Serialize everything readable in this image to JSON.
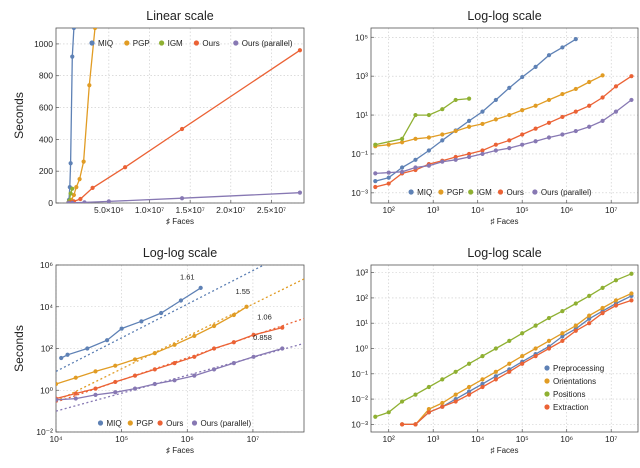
{
  "colors": {
    "MIQ": "#5e81b5",
    "PGP": "#e19c24",
    "IGM": "#8fb032",
    "Ours": "#eb6235",
    "Ours (parallel)": "#8778b3",
    "Preprocessing": "#5e81b5",
    "Orientations": "#e19c24",
    "Positions": "#8fb032",
    "Extraction": "#eb6235"
  },
  "chart_data": [
    {
      "type": "line",
      "title": "Linear scale",
      "xlabel": "♯ Faces",
      "ylabel": "Seconds",
      "xlim": [
        -1500000,
        29000000
      ],
      "ylim": [
        0,
        1100
      ],
      "grid": true,
      "legend": "top",
      "xticks": [
        5000000,
        10000000,
        15000000,
        20000000,
        25000000
      ],
      "xtick_labels": [
        "5.0×10⁶",
        "1.0×10⁷",
        "1.5×10⁷",
        "2.0×10⁷",
        "2.5×10⁷"
      ],
      "yticks": [
        0,
        200,
        400,
        600,
        800,
        1000
      ],
      "legend_order": [
        "MIQ",
        "PGP",
        "IGM",
        "Ours",
        "Ours (parallel)"
      ],
      "series": [
        {
          "name": "MIQ",
          "x": [
            10000,
            50000,
            100000,
            200000,
            300000,
            500000,
            700000
          ],
          "y": [
            1,
            5,
            20,
            100,
            250,
            920,
            1100
          ]
        },
        {
          "name": "PGP",
          "x": [
            50000,
            150000,
            400000,
            700000,
            1000000,
            1400000,
            1900000,
            2600000,
            3300000
          ],
          "y": [
            2,
            8,
            20,
            50,
            100,
            150,
            260,
            740,
            1100
          ]
        },
        {
          "name": "IGM",
          "x": [
            50000,
            150000,
            300000,
            500000
          ],
          "y": [
            3,
            15,
            60,
            90
          ]
        },
        {
          "name": "Ours",
          "x": [
            50000,
            300000,
            700000,
            1500000,
            3000000,
            7000000,
            14000000,
            28500000
          ],
          "y": [
            1,
            5,
            10,
            25,
            95,
            225,
            465,
            960
          ]
        },
        {
          "name": "Ours (parallel)",
          "x": [
            50000,
            500000,
            2000000,
            5000000,
            14000000,
            28500000
          ],
          "y": [
            0.3,
            1,
            4,
            10,
            30,
            65
          ]
        }
      ]
    },
    {
      "type": "line",
      "title": "Log-log scale",
      "xlabel": "♯ Faces",
      "ylabel": "",
      "xscale": "log",
      "yscale": "log",
      "xlim": [
        40,
        40000000
      ],
      "ylim": [
        0.0003,
        300000
      ],
      "grid": true,
      "legend": "bottom",
      "xticks": [
        100,
        1000,
        10000,
        100000,
        1000000,
        10000000
      ],
      "xtick_labels": [
        "10²",
        "10³",
        "10⁴",
        "10⁵",
        "10⁶",
        "10⁷"
      ],
      "yticks": [
        0.001,
        0.1,
        10,
        1000,
        100000
      ],
      "ytick_labels": [
        "10⁻³",
        "10⁻¹",
        "10¹",
        "10³",
        "10⁵"
      ],
      "legend_order": [
        "MIQ",
        "PGP",
        "IGM",
        "Ours",
        "Ours (parallel)"
      ],
      "series": [
        {
          "name": "MIQ",
          "x": [
            50,
            100,
            200,
            400,
            800,
            1600,
            3200,
            6400,
            12800,
            25600,
            51200,
            100000,
            200000,
            400000,
            800000,
            1600000
          ],
          "y": [
            0.004,
            0.006,
            0.02,
            0.05,
            0.15,
            0.5,
            1.6,
            5,
            15,
            60,
            250,
            900,
            3000,
            12000,
            30000,
            80000
          ]
        },
        {
          "name": "PGP",
          "x": [
            50,
            100,
            200,
            400,
            800,
            1600,
            3200,
            6400,
            12800,
            25600,
            51200,
            100000,
            200000,
            400000,
            800000,
            1600000,
            3200000,
            6400000
          ],
          "y": [
            0.25,
            0.3,
            0.4,
            0.6,
            0.7,
            1,
            1.5,
            2.5,
            3.5,
            6,
            10,
            18,
            30,
            60,
            120,
            220,
            500,
            1100
          ]
        },
        {
          "name": "IGM",
          "x": [
            50,
            200,
            400,
            800,
            1600,
            3200,
            6400
          ],
          "y": [
            0.3,
            0.6,
            10,
            10,
            20,
            60,
            70
          ]
        },
        {
          "name": "Ours",
          "x": [
            50,
            100,
            200,
            400,
            800,
            1600,
            3200,
            6400,
            12800,
            25600,
            51200,
            100000,
            200000,
            400000,
            800000,
            1600000,
            3200000,
            6400000,
            12800000,
            28500000
          ],
          "y": [
            0.002,
            0.003,
            0.01,
            0.015,
            0.03,
            0.045,
            0.07,
            0.1,
            0.15,
            0.3,
            0.5,
            1,
            2,
            4,
            8,
            15,
            30,
            80,
            300,
            1000
          ]
        },
        {
          "name": "Ours (parallel)",
          "x": [
            50,
            100,
            200,
            400,
            800,
            1600,
            3200,
            6400,
            12800,
            25600,
            51200,
            100000,
            200000,
            400000,
            800000,
            1600000,
            3200000,
            6400000,
            12800000,
            28500000
          ],
          "y": [
            0.01,
            0.011,
            0.012,
            0.02,
            0.025,
            0.04,
            0.05,
            0.07,
            0.1,
            0.15,
            0.2,
            0.3,
            0.45,
            0.7,
            1,
            1.5,
            2.5,
            5,
            15,
            60
          ]
        }
      ]
    },
    {
      "type": "line",
      "title": "Log-log scale",
      "xlabel": "♯ Faces",
      "ylabel": "Seconds",
      "xscale": "log",
      "yscale": "log",
      "xlim": [
        10000,
        60000000
      ],
      "ylim": [
        0.01,
        1000000
      ],
      "grid": true,
      "legend": "bottom",
      "xticks": [
        10000,
        100000,
        1000000,
        10000000
      ],
      "xtick_labels": [
        "10⁴",
        "10⁵",
        "10⁶",
        "10⁷"
      ],
      "yticks": [
        0.01,
        1,
        100,
        10000,
        1000000
      ],
      "ytick_labels": [
        "10⁻²",
        "10⁰",
        "10²",
        "10⁴",
        "10⁶"
      ],
      "legend_order": [
        "MIQ",
        "PGP",
        "Ours",
        "Ours (parallel)"
      ],
      "series": [
        {
          "name": "MIQ",
          "x": [
            12000,
            15000,
            30000,
            60000,
            100000,
            200000,
            400000,
            800000,
            1600000
          ],
          "y": [
            35,
            50,
            100,
            250,
            900,
            2000,
            5000,
            20000,
            80000
          ],
          "slope": 1.61,
          "fit_y_at_1e4": 8
        },
        {
          "name": "PGP",
          "x": [
            10000,
            20000,
            40000,
            80000,
            160000,
            320000,
            640000,
            1280000,
            2560000,
            5120000,
            8000000
          ],
          "y": [
            2,
            4,
            8,
            15,
            30,
            60,
            150,
            400,
            1200,
            4000,
            10000
          ],
          "slope": 1.55,
          "fit_y_at_1e4": 0.3
        },
        {
          "name": "Ours",
          "x": [
            10000,
            20000,
            40000,
            80000,
            160000,
            320000,
            640000,
            1280000,
            2560000,
            5120000,
            10240000,
            28000000
          ],
          "y": [
            0.4,
            0.7,
            1.2,
            2.5,
            5,
            10,
            20,
            40,
            100,
            200,
            450,
            1000
          ],
          "slope": 1.06,
          "fit_y_at_1e4": 0.27
        },
        {
          "name": "Ours (parallel)",
          "x": [
            10000,
            20000,
            40000,
            80000,
            160000,
            320000,
            640000,
            1280000,
            2560000,
            5120000,
            10240000,
            28000000
          ],
          "y": [
            0.35,
            0.4,
            0.6,
            0.8,
            1.2,
            2,
            3,
            5,
            10,
            20,
            40,
            100
          ],
          "slope": 0.858,
          "fit_y_at_1e4": 0.1
        }
      ],
      "annotations": [
        "1.61",
        "1.55",
        "1.06",
        "0.858"
      ]
    },
    {
      "type": "line",
      "title": "Log-log scale",
      "xlabel": "♯ Faces",
      "ylabel": "",
      "xscale": "log",
      "yscale": "log",
      "xlim": [
        40,
        40000000
      ],
      "ylim": [
        0.0005,
        2000
      ],
      "grid": true,
      "legend": "bottom-right",
      "xticks": [
        100,
        1000,
        10000,
        100000,
        1000000,
        10000000
      ],
      "xtick_labels": [
        "10²",
        "10³",
        "10⁴",
        "10⁵",
        "10⁶",
        "10⁷"
      ],
      "yticks": [
        0.001,
        0.01,
        0.1,
        1,
        10,
        100,
        1000
      ],
      "ytick_labels": [
        "10⁻³",
        "10⁻²",
        "10⁻¹",
        "10⁰",
        "10¹",
        "10²",
        "10³"
      ],
      "legend_order": [
        "Preprocessing",
        "Orientations",
        "Positions",
        "Extraction"
      ],
      "series": [
        {
          "name": "Preprocessing",
          "x": [
            200,
            400,
            800,
            1600,
            3200,
            6400,
            12800,
            25600,
            51200,
            100000,
            200000,
            400000,
            800000,
            1600000,
            3200000,
            6400000,
            12800000,
            28500000
          ],
          "y": [
            0.001,
            0.001,
            0.003,
            0.005,
            0.01,
            0.02,
            0.04,
            0.08,
            0.15,
            0.3,
            0.6,
            1.2,
            3,
            6,
            15,
            30,
            60,
            120
          ]
        },
        {
          "name": "Orientations",
          "x": [
            200,
            400,
            800,
            1600,
            3200,
            6400,
            12800,
            25600,
            51200,
            100000,
            200000,
            400000,
            800000,
            1600000,
            3200000,
            6400000,
            12800000,
            28500000
          ],
          "y": [
            0.001,
            0.001,
            0.004,
            0.007,
            0.015,
            0.03,
            0.06,
            0.12,
            0.25,
            0.5,
            1,
            2,
            4,
            8,
            20,
            40,
            80,
            150
          ]
        },
        {
          "name": "Positions",
          "x": [
            50,
            100,
            200,
            400,
            800,
            1600,
            3200,
            6400,
            12800,
            25600,
            51200,
            100000,
            200000,
            400000,
            800000,
            1600000,
            3200000,
            6400000,
            12800000,
            28500000
          ],
          "y": [
            0.002,
            0.003,
            0.008,
            0.015,
            0.03,
            0.06,
            0.12,
            0.25,
            0.5,
            1,
            2,
            4,
            8,
            16,
            30,
            60,
            120,
            250,
            500,
            900
          ]
        },
        {
          "name": "Extraction",
          "x": [
            200,
            400,
            800,
            1600,
            3200,
            6400,
            12800,
            25600,
            51200,
            100000,
            200000,
            400000,
            800000,
            1600000,
            3200000,
            6400000,
            12800000,
            28500000
          ],
          "y": [
            0.001,
            0.001,
            0.003,
            0.005,
            0.008,
            0.015,
            0.03,
            0.06,
            0.12,
            0.25,
            0.5,
            1,
            2,
            5,
            10,
            25,
            50,
            80
          ]
        }
      ]
    }
  ]
}
